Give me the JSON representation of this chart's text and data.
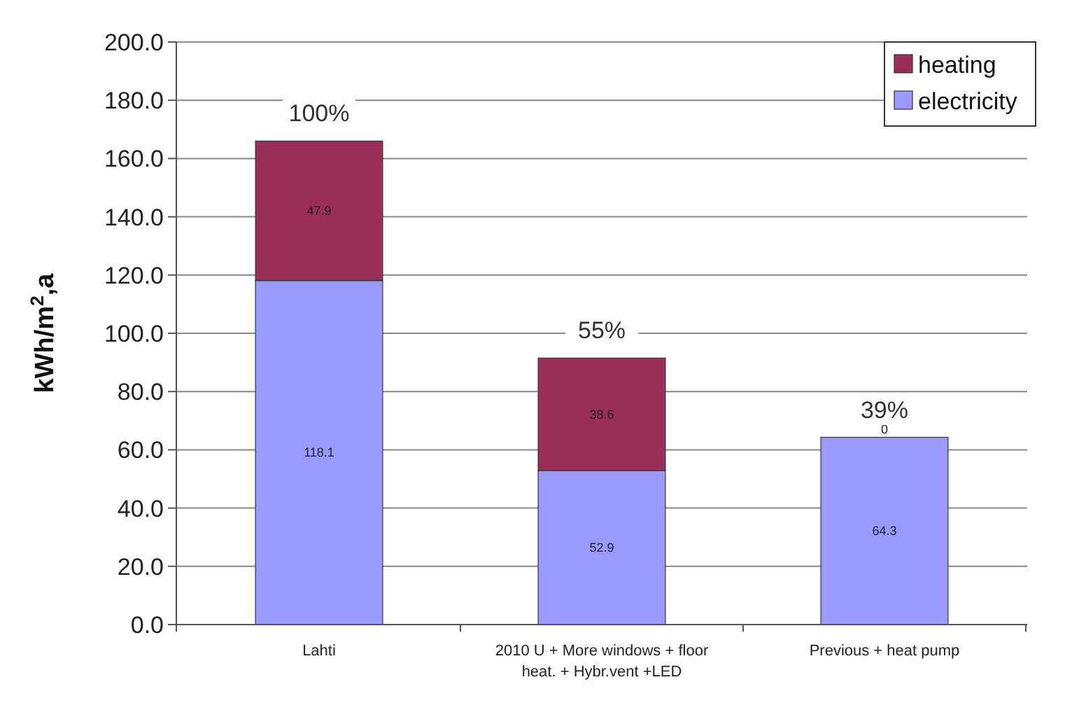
{
  "chart_data": {
    "type": "bar",
    "stacked": true,
    "ylabel": "kWh/m$^{2}$,a",
    "categories": [
      "Lahti",
      "2010 U + More windows + floor heat. + Hybr.vent +LED",
      "Previous + heat pump"
    ],
    "series": [
      {
        "name": "electricity",
        "color": "#9999ff",
        "values": [
          118.1,
          52.9,
          64.3
        ]
      },
      {
        "name": "heating",
        "color": "#9b2d5a",
        "values": [
          47.9,
          38.6,
          0
        ]
      }
    ],
    "data_labels": true,
    "ylim": [
      0,
      200
    ],
    "yticks": [
      {
        "value": 0,
        "label": "0.0"
      },
      {
        "value": 20,
        "label": "20.0"
      },
      {
        "value": 40,
        "label": "40.0"
      },
      {
        "value": 60,
        "label": "60.0"
      },
      {
        "value": 80,
        "label": "80.0"
      },
      {
        "value": 100,
        "label": "100.0"
      },
      {
        "value": 120,
        "label": "120.0"
      },
      {
        "value": 140,
        "label": "140.0"
      },
      {
        "value": 160,
        "label": "160.0"
      },
      {
        "value": 180,
        "label": "180.0"
      },
      {
        "value": 200,
        "label": "200.0"
      }
    ],
    "grid": "y",
    "legend": "top right",
    "annotations": [
      {
        "text": "100%",
        "x": "Lahti",
        "y": 166
      },
      {
        "text": "55%",
        "x": "2010 U + More windows + floor heat. + Hybr.vent +LED",
        "y": 91.5
      },
      {
        "text": "39%",
        "x": "Previous + heat pump",
        "y": 64.3
      }
    ]
  }
}
